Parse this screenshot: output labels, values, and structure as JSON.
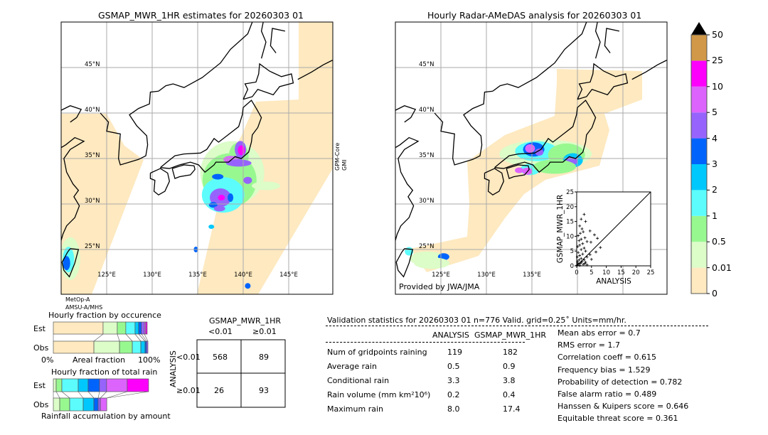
{
  "colors": {
    "scale": [
      "#fee9c0",
      "#dcfcc8",
      "#98f890",
      "#5cfcfc",
      "#00c8fc",
      "#0064fc",
      "#9664fc",
      "#dc64fc",
      "#fc00fc",
      "#d09848"
    ],
    "over": "#000000"
  },
  "chart_data": [
    {
      "type": "heatmap",
      "title": "GSMAP_MWR_1HR estimates for 20260303 01",
      "lon_range": [
        120,
        150
      ],
      "lat_range": [
        20,
        50
      ],
      "lon_ticks": [
        "125°E",
        "130°E",
        "135°E",
        "140°E",
        "145°E"
      ],
      "lat_ticks": [
        "45°N",
        "40°N",
        "35°N",
        "30°N",
        "25°N"
      ],
      "swath_labels": [
        "MetOp-A AMSU-A/MHS",
        "GPM-Core GMI"
      ],
      "sensor_left": {
        "line1": "MetOp-A",
        "line2": "AMSU-A/MHS"
      },
      "sensor_right": {
        "line1": "GPM-Core",
        "line2": "GMI"
      }
    },
    {
      "type": "heatmap",
      "title": "Hourly Radar-AMeDAS analysis for 20260303 01",
      "lon_range": [
        120,
        150
      ],
      "lat_range": [
        20,
        50
      ],
      "lon_ticks": [
        "125°E",
        "130°E",
        "135°E"
      ],
      "lat_ticks": [
        "45°N",
        "40°N",
        "35°N",
        "30°N",
        "25°N"
      ],
      "credit": "Provided by JWA/JMA"
    },
    {
      "type": "scatter",
      "xlabel": "ANALYSIS",
      "ylabel": "GSMAP_MWR_1HR",
      "xlim": [
        0,
        25
      ],
      "ylim": [
        0,
        25
      ],
      "ticks": [
        "0",
        "5",
        "10",
        "15",
        "20",
        "25"
      ],
      "points": [
        [
          2.5,
          17.4
        ],
        [
          1.5,
          15.8
        ],
        [
          3,
          15
        ],
        [
          1,
          13.5
        ],
        [
          1.8,
          12.5
        ],
        [
          2.2,
          11.5
        ],
        [
          4.5,
          11.8
        ],
        [
          1.2,
          11
        ],
        [
          0.5,
          10.2
        ],
        [
          2.8,
          9.5
        ],
        [
          1.5,
          9
        ],
        [
          0.8,
          8.5
        ],
        [
          6,
          10.5
        ],
        [
          7,
          9.3
        ],
        [
          4.8,
          8
        ],
        [
          3.5,
          8.2
        ],
        [
          2,
          7.5
        ],
        [
          1,
          7
        ],
        [
          0.3,
          6.5
        ],
        [
          8,
          6.2
        ],
        [
          6.5,
          4.7
        ],
        [
          2.5,
          6
        ],
        [
          1.5,
          5.5
        ],
        [
          3,
          5
        ],
        [
          0.5,
          4.5
        ],
        [
          2,
          4
        ],
        [
          1,
          3.5
        ],
        [
          4.5,
          3.8
        ],
        [
          3.5,
          3
        ],
        [
          0.2,
          3
        ],
        [
          1.5,
          2.5
        ],
        [
          2.5,
          2
        ],
        [
          0.8,
          2
        ],
        [
          5,
          2.2
        ],
        [
          1.8,
          1.5
        ],
        [
          0.3,
          1.5
        ],
        [
          3,
          1.2
        ],
        [
          1.2,
          0.8
        ],
        [
          0.5,
          0.5
        ],
        [
          2.2,
          0.5
        ],
        [
          0.1,
          0.2
        ],
        [
          1,
          0.1
        ],
        [
          3.5,
          0.3
        ],
        [
          0.3,
          1
        ],
        [
          1.5,
          1.2
        ],
        [
          2.8,
          0.8
        ]
      ]
    },
    {
      "type": "bar",
      "title": "Hourly fraction by occurence",
      "categories": [
        "Est",
        "Obs"
      ],
      "xlabel": "Areal fraction",
      "xmin_label": "0%",
      "xmax_label": "100%",
      "series_percent": {
        "Est": [
          52.6,
          15,
          9,
          9.8,
          3.8,
          3,
          3,
          1.5,
          1.5
        ],
        "Obs": [
          42.9,
          27.1,
          13.5,
          9,
          4.5,
          1.5,
          1.5
        ]
      }
    },
    {
      "type": "bar",
      "title": "Hourly fraction of total rain",
      "categories": [
        "Est",
        "Obs"
      ],
      "xlabel": "Rainfall accumulation by amount",
      "series_percent": {
        "Est": [
          3,
          6,
          17.3,
          10.5,
          12,
          7.5,
          21.8,
          22.6
        ],
        "Obs": [
          6.8,
          10.5,
          14.3,
          11.3,
          4.5,
          2.3,
          6.8
        ]
      }
    },
    {
      "type": "table",
      "title": "GSMAP_MWR_1HR",
      "col_headers": [
        "<0.01",
        "≥0.01"
      ],
      "row_label": "ANALYSIS",
      "row_headers": [
        "<0.01",
        "≥0.01"
      ],
      "cells": [
        [
          "568",
          "89"
        ],
        [
          "26",
          "93"
        ]
      ]
    }
  ],
  "colorbar": {
    "ticks": [
      "0",
      "0.01",
      "0.5",
      "1",
      "2",
      "3",
      "4",
      "5",
      "10",
      "25",
      "50"
    ]
  },
  "stats": {
    "header": "Validation statistics for 20260303 01  n=776 Valid. grid=0.25˚ Units=mm/hr.",
    "col1": "ANALYSIS",
    "col2": "GSMAP_MWR_1HR",
    "rows": [
      {
        "label": "Num of gridpoints raining",
        "a": "119",
        "g": "182"
      },
      {
        "label": "Average rain",
        "a": "0.5",
        "g": "0.9"
      },
      {
        "label": "Conditional rain",
        "a": "3.3",
        "g": "3.8"
      },
      {
        "label": "Rain volume (mm km²10⁶)",
        "a": "0.2",
        "g": "0.4"
      },
      {
        "label": "Maximum rain",
        "a": "8.0",
        "g": "17.4"
      }
    ],
    "scores": [
      "Mean abs error =    0.7",
      "RMS error =    1.7",
      "Correlation coeff =  0.615",
      "Frequency bias =  1.529",
      "Probability of detection =  0.782",
      "False alarm ratio =  0.489",
      "Hanssen & Kuipers score =  0.646",
      "Equitable threat score =  0.361"
    ]
  }
}
